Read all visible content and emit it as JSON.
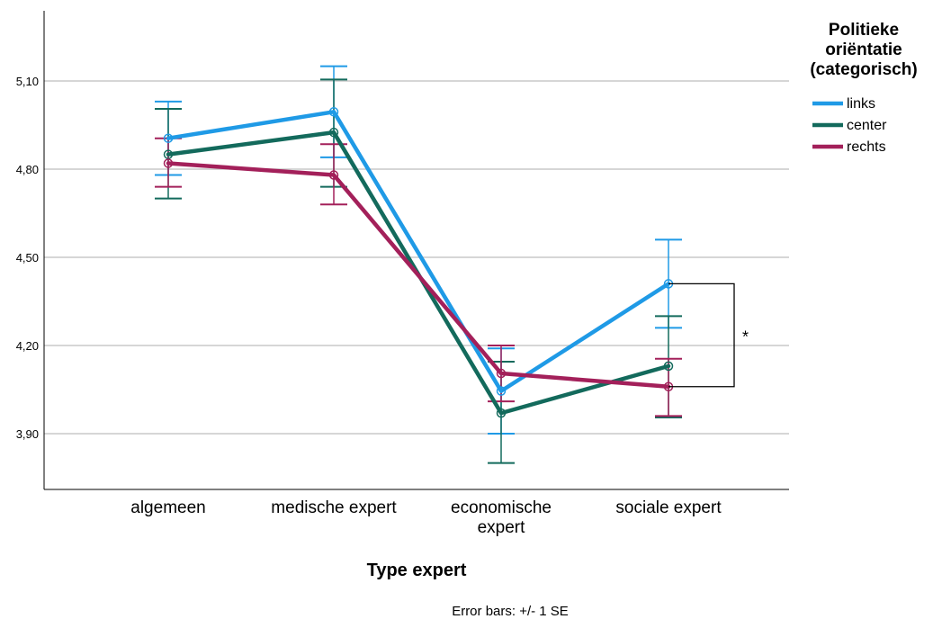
{
  "chart_data": {
    "type": "line",
    "xlabel": "Type expert",
    "categories": [
      "algemeen",
      "medische expert",
      "economische expert",
      "sociale expert"
    ],
    "category_lines": [
      [
        "algemeen"
      ],
      [
        "medische expert"
      ],
      [
        "economische",
        "expert"
      ],
      [
        "sociale expert"
      ]
    ],
    "yticks": [
      "3,90",
      "4,20",
      "4,50",
      "4,80",
      "5,10"
    ],
    "ylim": [
      3.7,
      5.3
    ],
    "grid": true,
    "legend": {
      "title_lines": [
        "Politieke",
        "oriëntatie",
        "(categorisch)"
      ],
      "placement": "top-right"
    },
    "series": [
      {
        "name": "links",
        "color": "#1f9ae6",
        "values": [
          4.905,
          4.995,
          4.045,
          4.41
        ],
        "se_low": [
          4.78,
          4.84,
          3.9,
          4.26
        ],
        "se_high": [
          5.03,
          5.15,
          4.19,
          4.56
        ]
      },
      {
        "name": "center",
        "color": "#136a5c",
        "values": [
          4.85,
          4.925,
          3.97,
          4.13
        ],
        "se_low": [
          4.7,
          4.74,
          3.8,
          3.955
        ],
        "se_high": [
          5.005,
          5.105,
          4.145,
          4.3
        ]
      },
      {
        "name": "rechts",
        "color": "#a3205a",
        "values": [
          4.82,
          4.78,
          4.105,
          4.06
        ],
        "se_low": [
          4.74,
          4.68,
          4.01,
          3.96
        ],
        "se_high": [
          4.905,
          4.885,
          4.2,
          4.155
        ]
      }
    ],
    "annotation": {
      "text": "*",
      "category": "sociale expert",
      "between": [
        "links",
        "rechts"
      ]
    },
    "footnote": "Error bars: +/- 1 SE"
  }
}
